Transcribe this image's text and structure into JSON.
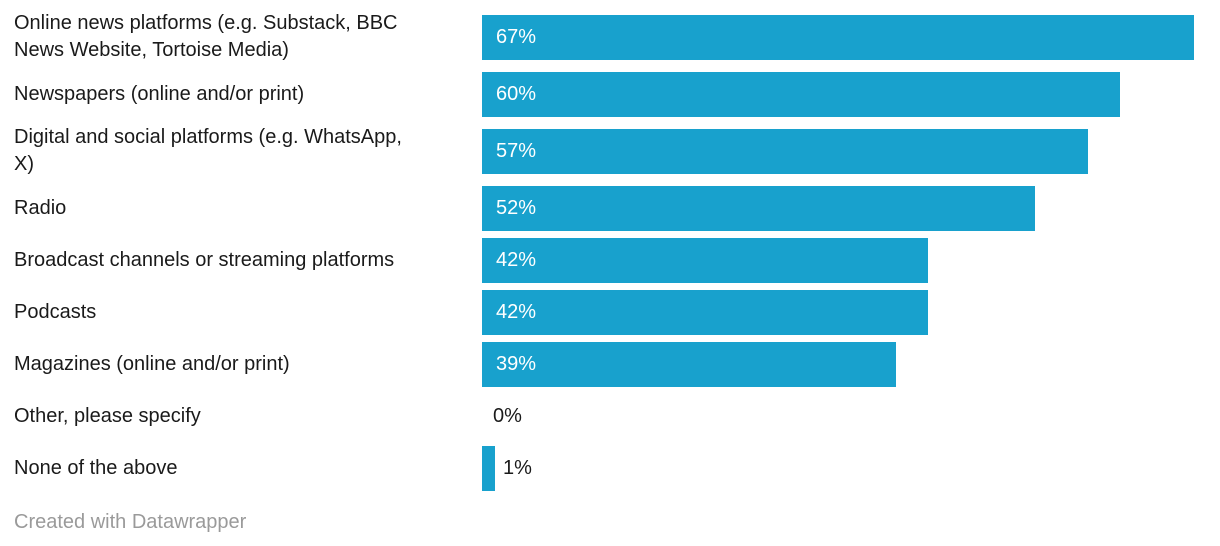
{
  "chart_data": {
    "type": "bar",
    "orientation": "horizontal",
    "title": "",
    "xlabel": "",
    "ylabel": "",
    "xlim": [
      0,
      67
    ],
    "grid": false,
    "legend": "none",
    "unit": "%",
    "categories": [
      "Online news platforms (e.g. Substack, BBC\nNews Website, Tortoise Media)",
      "Newspapers (online and/or print)",
      "Digital and social platforms (e.g. WhatsApp,\nX)",
      "Radio",
      "Broadcast channels or streaming platforms",
      "Podcasts",
      "Magazines (online and/or print)",
      "Other, please specify",
      "None of the above"
    ],
    "values": [
      67,
      60,
      57,
      52,
      42,
      42,
      39,
      0,
      1
    ],
    "value_labels": [
      "67%",
      "60%",
      "57%",
      "52%",
      "42%",
      "42%",
      "39%",
      "0%",
      "1%"
    ]
  },
  "footer": {
    "credit": "Created with Datawrapper"
  },
  "colors": {
    "bar": "#18a1cd",
    "label_text": "#1a1a1a",
    "value_label_inside": "#ffffff",
    "value_label_outside": "#1a1a1a",
    "footer_text": "#9a9a9a",
    "background": "#ffffff"
  }
}
